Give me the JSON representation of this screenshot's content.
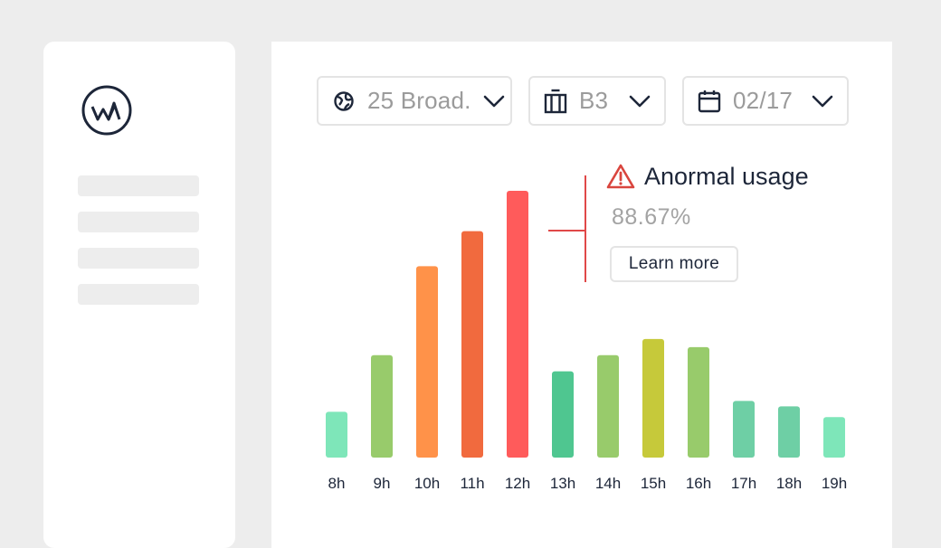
{
  "sidebar": {
    "logo_icon": "wm-logo-icon",
    "skeleton_lines": 4
  },
  "filters": {
    "location": {
      "icon": "globe-icon",
      "label": "25 Broad."
    },
    "floor": {
      "icon": "building-icon",
      "label": "B3"
    },
    "date": {
      "icon": "calendar-icon",
      "label": "02/17"
    }
  },
  "alert": {
    "icon": "warning-icon",
    "title": "Anormal usage",
    "value": "88.67%",
    "button_label": "Learn more",
    "color": "#e04848"
  },
  "chart_data": {
    "type": "bar",
    "categories": [
      "8h",
      "9h",
      "10h",
      "11h",
      "12h",
      "13h",
      "14h",
      "15h",
      "16h",
      "17h",
      "18h",
      "19h"
    ],
    "values": [
      17,
      38,
      71,
      84,
      99,
      32,
      38,
      44,
      41,
      21,
      19,
      15
    ],
    "colors": [
      "#7ee6b9",
      "#98cb6b",
      "#ff9249",
      "#f16a3e",
      "#ff5b5b",
      "#4fc690",
      "#98cb6b",
      "#c6c93a",
      "#98cb6b",
      "#6ecfa5",
      "#6ecfa5",
      "#7ee6b9"
    ],
    "ylim": [
      0,
      100
    ],
    "grid": false,
    "title": "",
    "xlabel": "",
    "ylabel": ""
  }
}
